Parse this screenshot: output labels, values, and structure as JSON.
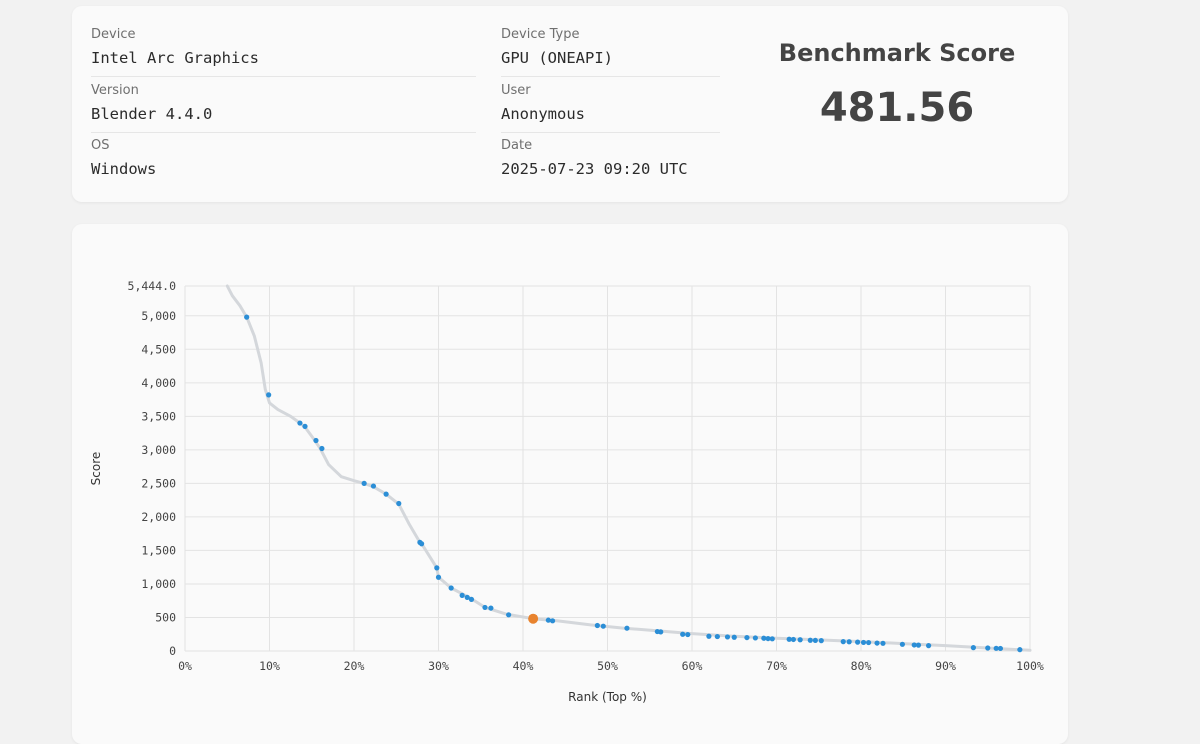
{
  "info": {
    "device_label": "Device",
    "device_value": "Intel Arc Graphics",
    "device_type_label": "Device Type",
    "device_type_value": "GPU (ONEAPI)",
    "version_label": "Version",
    "version_value": "Blender 4.4.0",
    "user_label": "User",
    "user_value": "Anonymous",
    "os_label": "OS",
    "os_value": "Windows",
    "date_label": "Date",
    "date_value": "2025-07-23 09:20 UTC"
  },
  "score": {
    "title": "Benchmark Score",
    "value": "481.56"
  },
  "chart_data": {
    "type": "scatter",
    "xlabel": "Rank (Top %)",
    "ylabel": "Score",
    "xlim": [
      0,
      100
    ],
    "ylim": [
      0,
      5444
    ],
    "x_ticks": [
      "0%",
      "10%",
      "20%",
      "30%",
      "40%",
      "50%",
      "60%",
      "70%",
      "80%",
      "90%",
      "100%"
    ],
    "y_ticks": [
      "0",
      "500",
      "1,000",
      "1,500",
      "2,000",
      "2,500",
      "3,000",
      "3,500",
      "4,000",
      "4,500",
      "5,000",
      "5,444.0"
    ],
    "y_tick_values": [
      0,
      500,
      1000,
      1500,
      2000,
      2500,
      3000,
      3500,
      4000,
      4500,
      5000,
      5444
    ],
    "grid": true,
    "colors": {
      "curve": "#d4d7db",
      "points": "#2b8ed6",
      "highlight": "#e8832e",
      "grid": "#e3e3e3"
    },
    "curve": {
      "x": [
        5,
        5.6,
        6.5,
        7.3,
        8.2,
        9.0,
        9.5,
        10.0,
        11.0,
        12.5,
        13.6,
        14.2,
        15.3,
        16.0,
        17.0,
        18.5,
        20.0,
        21.2,
        22.3,
        23.8,
        25.3,
        26.5,
        27.8,
        28.0,
        29.0,
        29.8,
        30.0,
        31.5,
        33.0,
        34.0,
        35.5,
        38.0,
        41.2,
        44.0,
        48.0,
        52.0,
        56.0,
        60.0,
        65.0,
        70.0,
        75.0,
        80.0,
        85.0,
        90.0,
        95.0,
        100.0
      ],
      "y": [
        5444,
        5300,
        5150,
        4980,
        4700,
        4300,
        3900,
        3700,
        3600,
        3500,
        3400,
        3340,
        3150,
        3020,
        2780,
        2600,
        2540,
        2500,
        2450,
        2340,
        2190,
        1900,
        1620,
        1600,
        1400,
        1240,
        1100,
        940,
        840,
        770,
        650,
        550,
        481.56,
        450,
        390,
        340,
        300,
        260,
        220,
        190,
        165,
        140,
        110,
        80,
        45,
        10
      ]
    },
    "series": [
      {
        "x": [
          7.3,
          9.9,
          13.6,
          14.2,
          15.5,
          16.2,
          21.2,
          22.3,
          23.8,
          25.3,
          27.8,
          28.0,
          29.8,
          30.0,
          31.5,
          32.8,
          33.4,
          33.9,
          35.5,
          36.2,
          38.3,
          43.0,
          43.5,
          48.8,
          49.5,
          52.3,
          55.9,
          56.3,
          58.9,
          59.5,
          62.0,
          63.0,
          64.2,
          65.0,
          66.5,
          67.5,
          68.5,
          69.0,
          69.5,
          71.5,
          72.0,
          72.8,
          74.0,
          74.6,
          75.3,
          77.9,
          78.6,
          79.6,
          80.3,
          80.9,
          81.9,
          82.6,
          84.9,
          86.3,
          86.8,
          88.0,
          93.3,
          95.0,
          96.0,
          96.5,
          98.8
        ],
        "y": [
          4980,
          3820,
          3400,
          3350,
          3140,
          3020,
          2500,
          2460,
          2340,
          2200,
          1620,
          1600,
          1240,
          1100,
          940,
          830,
          800,
          770,
          650,
          640,
          540,
          460,
          450,
          380,
          370,
          340,
          290,
          285,
          250,
          245,
          220,
          215,
          210,
          205,
          200,
          195,
          190,
          185,
          182,
          175,
          172,
          168,
          160,
          158,
          155,
          140,
          138,
          132,
          128,
          126,
          118,
          115,
          100,
          90,
          88,
          80,
          50,
          45,
          40,
          38,
          20
        ]
      }
    ],
    "highlight": {
      "x": 41.2,
      "y": 481.56
    }
  }
}
